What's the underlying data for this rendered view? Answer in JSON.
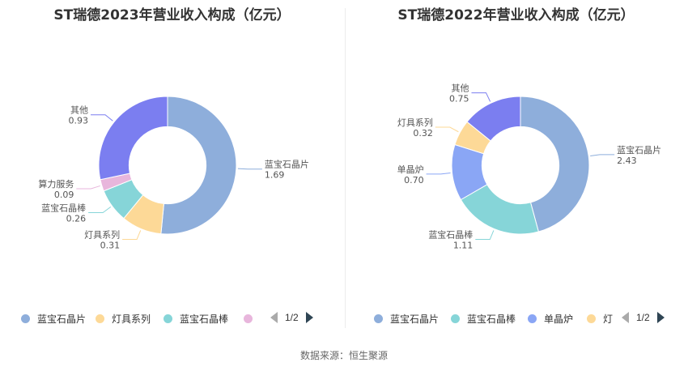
{
  "source": "数据来源：恒生聚源",
  "chart_data": [
    {
      "type": "pie",
      "title": "ST瑞德2023年营业收入构成（亿元）",
      "inner_radius_ratio": 0.56,
      "slices": [
        {
          "name": "蓝宝石晶片",
          "value": 1.69,
          "value_label": "1.69",
          "color": "#8eaedb"
        },
        {
          "name": "灯具系列",
          "value": 0.31,
          "value_label": "0.31",
          "color": "#fdd997"
        },
        {
          "name": "蓝宝石晶棒",
          "value": 0.26,
          "value_label": "0.26",
          "color": "#86d5d8"
        },
        {
          "name": "算力服务",
          "value": 0.09,
          "value_label": "0.09",
          "color": "#e8b6dc"
        },
        {
          "name": "其他",
          "value": 0.93,
          "value_label": "0.93",
          "color": "#7b7ef0"
        }
      ],
      "legend": {
        "position": "bottom",
        "items": [
          "蓝宝石晶片",
          "灯具系列",
          "蓝宝石晶棒",
          ""
        ],
        "page": "1/2"
      }
    },
    {
      "type": "pie",
      "title": "ST瑞德2022年营业收入构成（亿元）",
      "inner_radius_ratio": 0.56,
      "slices": [
        {
          "name": "蓝宝石晶片",
          "value": 2.43,
          "value_label": "2.43",
          "color": "#8eaedb"
        },
        {
          "name": "蓝宝石晶棒",
          "value": 1.11,
          "value_label": "1.11",
          "color": "#86d5d8"
        },
        {
          "name": "单晶炉",
          "value": 0.7,
          "value_label": "0.70",
          "color": "#8aa6f5"
        },
        {
          "name": "灯具系列",
          "value": 0.32,
          "value_label": "0.32",
          "color": "#fdd997"
        },
        {
          "name": "其他",
          "value": 0.75,
          "value_label": "0.75",
          "color": "#7b7ef0"
        }
      ],
      "legend": {
        "position": "bottom",
        "items": [
          "蓝宝石晶片",
          "蓝宝石晶棒",
          "单晶炉",
          "灯"
        ],
        "page": "1/2"
      }
    }
  ]
}
